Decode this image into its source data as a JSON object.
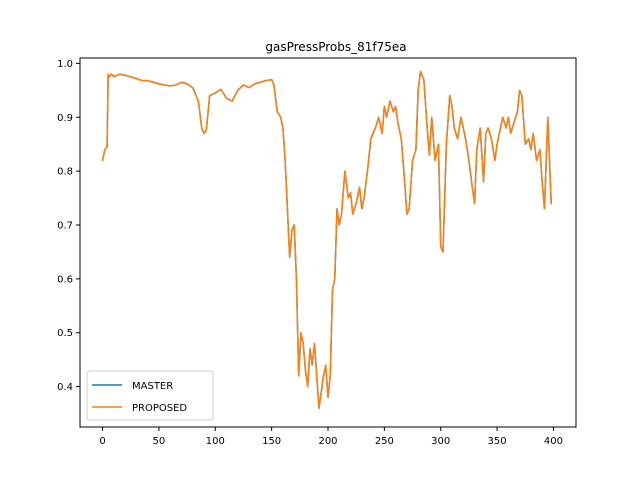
{
  "chart_data": {
    "type": "line",
    "title": "gasPressProbs_81f75ea",
    "xlabel": "",
    "ylabel": "",
    "xlim": [
      -20,
      420
    ],
    "ylim": [
      0.325,
      1.01
    ],
    "xticks": [
      0,
      50,
      100,
      150,
      200,
      250,
      300,
      350,
      400
    ],
    "yticks": [
      0.4,
      0.5,
      0.6,
      0.7,
      0.8,
      0.9,
      1.0
    ],
    "ytick_labels": [
      "0.4",
      "0.5",
      "0.6",
      "0.7",
      "0.8",
      "0.9",
      "1.0"
    ],
    "grid": false,
    "legend_position": "lower-left",
    "x": [
      0,
      2,
      4,
      5,
      6,
      8,
      10,
      15,
      20,
      25,
      30,
      35,
      40,
      45,
      50,
      55,
      60,
      65,
      70,
      75,
      80,
      85,
      88,
      90,
      92,
      95,
      100,
      105,
      110,
      115,
      120,
      125,
      130,
      135,
      140,
      145,
      150,
      152,
      155,
      158,
      160,
      162,
      164,
      166,
      168,
      170,
      172,
      174,
      176,
      178,
      180,
      182,
      184,
      186,
      188,
      190,
      192,
      194,
      196,
      198,
      200,
      202,
      204,
      206,
      208,
      210,
      212,
      215,
      218,
      220,
      222,
      225,
      228,
      230,
      232,
      235,
      238,
      240,
      242,
      245,
      248,
      250,
      252,
      255,
      258,
      260,
      262,
      265,
      268,
      270,
      272,
      275,
      278,
      280,
      282,
      285,
      288,
      290,
      292,
      295,
      298,
      300,
      302,
      305,
      308,
      310,
      312,
      315,
      318,
      320,
      322,
      325,
      328,
      330,
      332,
      335,
      338,
      340,
      342,
      345,
      348,
      350,
      352,
      355,
      358,
      360,
      362,
      365,
      368,
      370,
      372,
      375,
      378,
      380,
      382,
      385,
      388,
      390,
      392,
      395,
      398
    ],
    "series": [
      {
        "name": "MASTER",
        "color": "#1f77b4",
        "values": [
          0.82,
          0.84,
          0.845,
          0.98,
          0.975,
          0.98,
          0.975,
          0.98,
          0.978,
          0.975,
          0.972,
          0.968,
          0.968,
          0.965,
          0.962,
          0.96,
          0.958,
          0.96,
          0.965,
          0.962,
          0.955,
          0.93,
          0.88,
          0.87,
          0.875,
          0.94,
          0.945,
          0.952,
          0.935,
          0.93,
          0.95,
          0.96,
          0.955,
          0.962,
          0.965,
          0.968,
          0.97,
          0.96,
          0.91,
          0.9,
          0.88,
          0.82,
          0.73,
          0.64,
          0.69,
          0.7,
          0.6,
          0.42,
          0.5,
          0.48,
          0.43,
          0.4,
          0.47,
          0.44,
          0.48,
          0.42,
          0.36,
          0.39,
          0.42,
          0.44,
          0.38,
          0.42,
          0.58,
          0.6,
          0.73,
          0.7,
          0.72,
          0.8,
          0.75,
          0.76,
          0.72,
          0.74,
          0.77,
          0.73,
          0.75,
          0.8,
          0.86,
          0.87,
          0.88,
          0.9,
          0.87,
          0.92,
          0.9,
          0.93,
          0.91,
          0.92,
          0.89,
          0.86,
          0.78,
          0.72,
          0.73,
          0.82,
          0.84,
          0.95,
          0.985,
          0.97,
          0.88,
          0.83,
          0.9,
          0.82,
          0.85,
          0.66,
          0.65,
          0.85,
          0.94,
          0.92,
          0.88,
          0.86,
          0.9,
          0.88,
          0.86,
          0.82,
          0.77,
          0.74,
          0.84,
          0.88,
          0.78,
          0.87,
          0.88,
          0.86,
          0.82,
          0.85,
          0.87,
          0.9,
          0.88,
          0.9,
          0.87,
          0.89,
          0.91,
          0.95,
          0.94,
          0.85,
          0.86,
          0.84,
          0.87,
          0.82,
          0.84,
          0.78,
          0.73,
          0.9,
          0.74
        ]
      },
      {
        "name": "PROPOSED",
        "color": "#ff7f0e",
        "values": [
          0.82,
          0.84,
          0.845,
          0.98,
          0.975,
          0.98,
          0.975,
          0.98,
          0.978,
          0.975,
          0.972,
          0.968,
          0.968,
          0.965,
          0.962,
          0.96,
          0.958,
          0.96,
          0.965,
          0.962,
          0.955,
          0.93,
          0.88,
          0.87,
          0.875,
          0.94,
          0.945,
          0.952,
          0.935,
          0.93,
          0.95,
          0.96,
          0.955,
          0.962,
          0.965,
          0.968,
          0.97,
          0.96,
          0.91,
          0.9,
          0.88,
          0.82,
          0.73,
          0.64,
          0.69,
          0.7,
          0.6,
          0.42,
          0.5,
          0.48,
          0.43,
          0.4,
          0.47,
          0.44,
          0.48,
          0.42,
          0.36,
          0.39,
          0.42,
          0.44,
          0.38,
          0.42,
          0.58,
          0.6,
          0.73,
          0.7,
          0.72,
          0.8,
          0.75,
          0.76,
          0.72,
          0.74,
          0.77,
          0.73,
          0.75,
          0.8,
          0.86,
          0.87,
          0.88,
          0.9,
          0.87,
          0.92,
          0.9,
          0.93,
          0.91,
          0.92,
          0.89,
          0.86,
          0.78,
          0.72,
          0.73,
          0.82,
          0.84,
          0.95,
          0.985,
          0.97,
          0.88,
          0.83,
          0.9,
          0.82,
          0.85,
          0.66,
          0.65,
          0.85,
          0.94,
          0.92,
          0.88,
          0.86,
          0.9,
          0.88,
          0.86,
          0.82,
          0.77,
          0.74,
          0.84,
          0.88,
          0.78,
          0.87,
          0.88,
          0.86,
          0.82,
          0.85,
          0.87,
          0.9,
          0.88,
          0.9,
          0.87,
          0.89,
          0.91,
          0.95,
          0.94,
          0.85,
          0.86,
          0.84,
          0.87,
          0.82,
          0.84,
          0.78,
          0.73,
          0.9,
          0.74
        ]
      }
    ]
  }
}
